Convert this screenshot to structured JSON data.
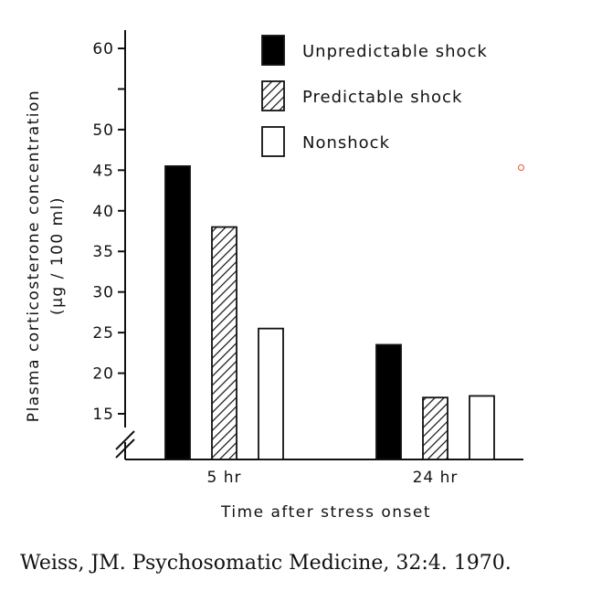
{
  "chart_data": {
    "type": "bar",
    "categories": [
      "5 hr",
      "24 hr"
    ],
    "series": [
      {
        "name": "Unpredictable shock",
        "values": [
          45.5,
          23.5
        ],
        "fill": "solid",
        "color": "#000000"
      },
      {
        "name": "Predictable shock",
        "values": [
          38,
          17
        ],
        "fill": "hatched",
        "color": "#000000"
      },
      {
        "name": "Nonshock",
        "values": [
          25.5,
          17.2
        ],
        "fill": "open",
        "color": "#ffffff"
      }
    ],
    "xlabel": "Time after stress onset",
    "ylabel": "Plasma corticosterone concentration",
    "ylabel_units": "(µg / 100 ml)",
    "yticks": [
      15,
      20,
      25,
      30,
      35,
      40,
      45,
      50,
      55,
      60
    ],
    "ytick_labels": [
      "15",
      "20",
      "25",
      "30",
      "35",
      "40",
      "45",
      "50",
      "",
      "60"
    ],
    "ylim": [
      10,
      62
    ],
    "axis_break": true,
    "legend_position": "top-right",
    "grid": false
  },
  "citation": "Weiss, JM.  Psychosomatic Medicine, 32:4. 1970."
}
